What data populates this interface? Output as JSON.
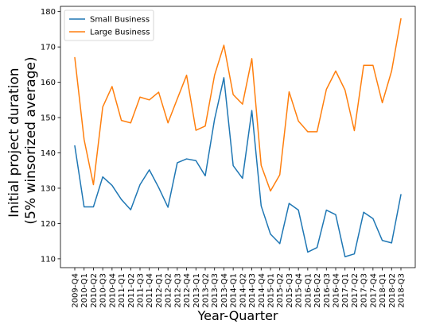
{
  "chart_data": {
    "type": "line",
    "title": "",
    "xlabel": "Year-Quarter",
    "ylabel": "Initial project duration\n(5% winsorized average)",
    "ylim": [
      107.5,
      181.5
    ],
    "yticks": [
      110,
      120,
      130,
      140,
      150,
      160,
      170,
      180
    ],
    "grid": false,
    "legend_position": "top-left",
    "categories": [
      "2009-Q4",
      "2010-Q1",
      "2010-Q2",
      "2010-Q3",
      "2010-Q4",
      "2011-Q1",
      "2011-Q2",
      "2011-Q3",
      "2011-Q4",
      "2012-Q1",
      "2012-Q2",
      "2012-Q3",
      "2012-Q4",
      "2013-Q1",
      "2013-Q2",
      "2013-Q3",
      "2013-Q4",
      "2014-Q1",
      "2014-Q2",
      "2014-Q3",
      "2014-Q4",
      "2015-Q1",
      "2015-Q2",
      "2015-Q3",
      "2015-Q4",
      "2016-Q1",
      "2016-Q2",
      "2016-Q3",
      "2016-Q4",
      "2017-Q1",
      "2017-Q2",
      "2017-Q3",
      "2017-Q4",
      "2018-Q1",
      "2018-Q2",
      "2018-Q3"
    ],
    "series": [
      {
        "name": "Small Business",
        "color": "#1f77b4",
        "values": [
          142,
          124.7,
          124.7,
          133.2,
          130.8,
          126.8,
          123.9,
          131,
          135.2,
          130.2,
          124.6,
          137.2,
          138.3,
          137.8,
          133.5,
          149.5,
          161.3,
          136.4,
          132.8,
          152,
          125,
          117,
          114.3,
          125.7,
          123.8,
          111.9,
          113.2,
          123.8,
          122.5,
          110.6,
          111.4,
          123.2,
          121.4,
          115.2,
          114.5,
          128.2
        ]
      },
      {
        "name": "Large Business",
        "color": "#ff7f0e",
        "values": [
          167,
          143.8,
          131,
          153,
          158.8,
          149.2,
          148.5,
          155.8,
          155,
          157.2,
          148.5,
          155.3,
          162,
          146.4,
          147.6,
          162,
          170.5,
          156.5,
          153.8,
          166.7,
          136.5,
          129.2,
          133.8,
          157.3,
          149,
          146,
          146,
          158,
          163.2,
          157.8,
          146.3,
          164.8,
          164.8,
          154.2,
          163.2,
          178
        ]
      }
    ]
  }
}
